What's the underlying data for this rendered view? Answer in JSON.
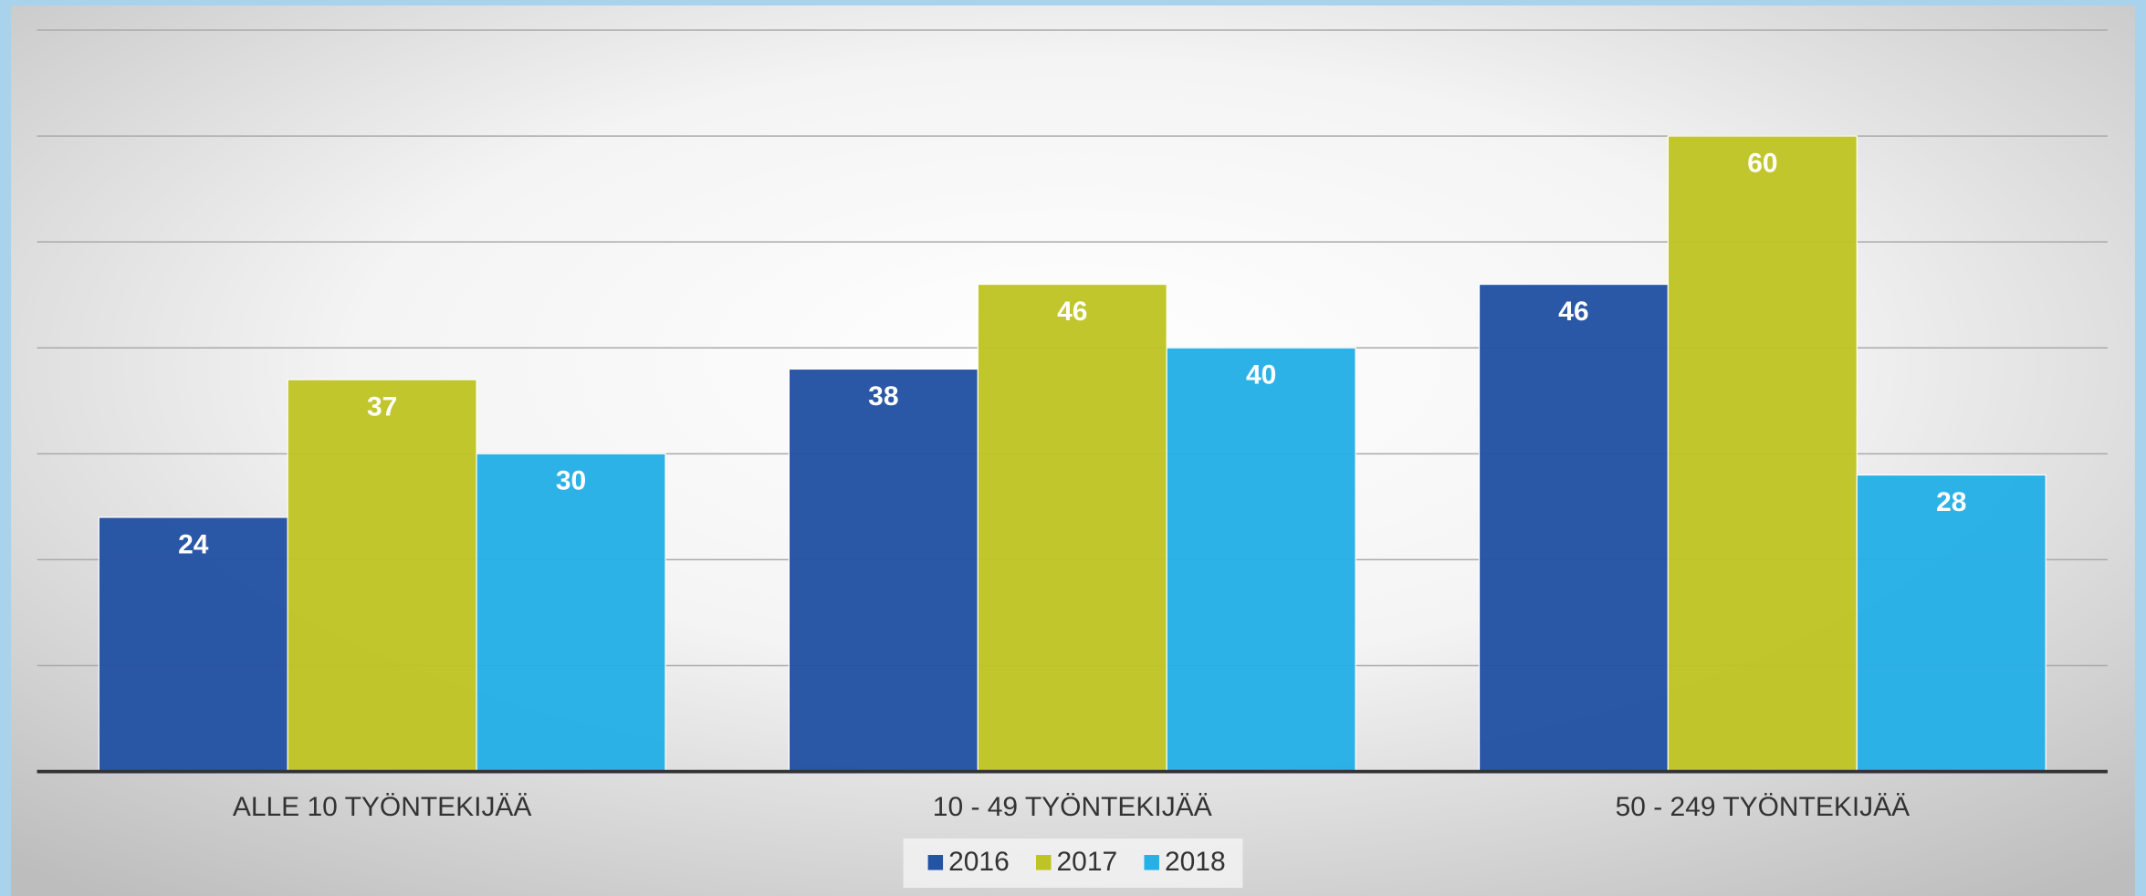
{
  "chart_data": {
    "type": "bar",
    "categories": [
      "ALLE 10 TYÖNTEKIJÄÄ",
      "10 - 49 TYÖNTEKIJÄÄ",
      "50 - 249 TYÖNTEKIJÄÄ"
    ],
    "series": [
      {
        "name": "2016",
        "color": "#2453a3",
        "values": [
          24,
          38,
          46
        ]
      },
      {
        "name": "2017",
        "color": "#bec424",
        "values": [
          37,
          46,
          60
        ]
      },
      {
        "name": "2018",
        "color": "#26b0e6",
        "values": [
          30,
          40,
          28
        ]
      }
    ],
    "ylim": [
      0,
      70
    ],
    "yticks": [
      0,
      10,
      20,
      30,
      40,
      50,
      60,
      70
    ],
    "grid": true,
    "legend": "bottom"
  }
}
